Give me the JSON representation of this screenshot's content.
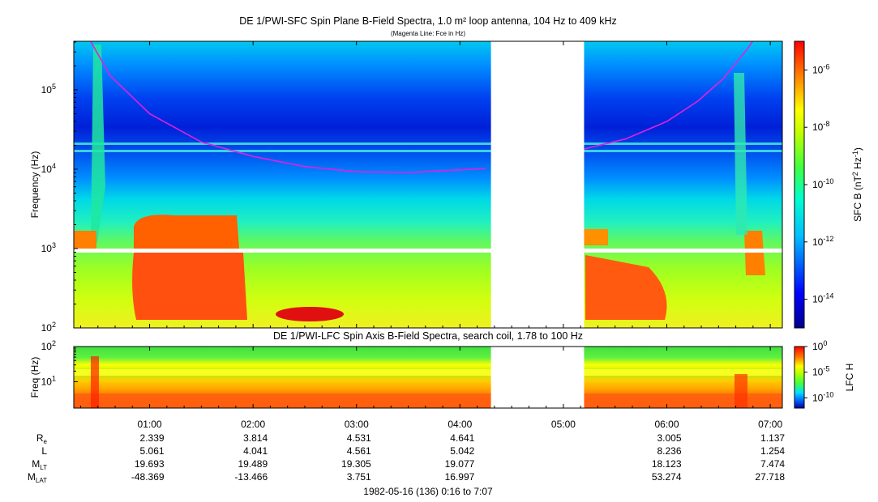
{
  "chart_data": [
    {
      "type": "heatmap",
      "title": "DE 1/PWI-SFC  Spin Plane B-Field Spectra, 1.0 m² loop antenna, 104 Hz to 409 kHz",
      "subtitle": "(Magenta Line: Fce in Hz)",
      "ylabel": "Frequency (Hz)",
      "y_scale": "log",
      "ylim": [
        100,
        409000
      ],
      "y_ticks": [
        {
          "value": 100,
          "base": "10",
          "exp": "2"
        },
        {
          "value": 1000,
          "base": "10",
          "exp": "3"
        },
        {
          "value": 10000,
          "base": "10",
          "exp": "4"
        },
        {
          "value": 100000,
          "base": "10",
          "exp": "5"
        }
      ],
      "colorbar": {
        "label_main": "SFC B (nT",
        "label_exp1": "2",
        "label_mid": " Hz",
        "label_exp2": "-1",
        "label_end": ")",
        "scale": "log",
        "range": [
          1e-15,
          1e-05
        ],
        "ticks": [
          {
            "value": 1e-06,
            "base": "10",
            "exp": "-6"
          },
          {
            "value": 1e-08,
            "base": "10",
            "exp": "-8"
          },
          {
            "value": 1e-10,
            "base": "10",
            "exp": "-10"
          },
          {
            "value": 1e-12,
            "base": "10",
            "exp": "-12"
          },
          {
            "value": 1e-14,
            "base": "10",
            "exp": "-14"
          }
        ]
      },
      "data_gap": [
        "04:18",
        "05:12"
      ],
      "fce_line": {
        "color": "#e020e0",
        "points": [
          [
            0.43,
            409000
          ],
          [
            0.62,
            150000
          ],
          [
            1.0,
            50000
          ],
          [
            1.5,
            22000
          ],
          [
            2.0,
            14500
          ],
          [
            2.5,
            10800
          ],
          [
            3.0,
            9300
          ],
          [
            3.5,
            9100
          ],
          [
            4.0,
            9800
          ],
          [
            4.25,
            10200
          ],
          [
            5.2,
            18000
          ],
          [
            5.6,
            24000
          ],
          [
            6.0,
            40000
          ],
          [
            6.3,
            72000
          ],
          [
            6.55,
            140000
          ],
          [
            6.78,
            330000
          ],
          [
            6.83,
            409000
          ]
        ]
      }
    },
    {
      "type": "heatmap",
      "title": "DE 1/PWI-LFC  Spin Axis B-Field Spectra, search coil, 1.78 to 100 Hz",
      "ylabel": "Freq (Hz)",
      "y_scale": "log",
      "ylim": [
        1.78,
        100
      ],
      "y_ticks": [
        {
          "value": 10,
          "base": "10",
          "exp": "1"
        },
        {
          "value": 100,
          "base": "10",
          "exp": "2"
        }
      ],
      "colorbar": {
        "label": "LFC H",
        "scale": "log",
        "range": [
          1e-12,
          1
        ],
        "ticks": [
          {
            "value": 1,
            "base": "10",
            "exp": "0"
          },
          {
            "value": 1e-05,
            "base": "10",
            "exp": "-5"
          },
          {
            "value": 1e-10,
            "base": "10",
            "exp": "-10"
          }
        ]
      },
      "data_gap": [
        "04:18",
        "05:12"
      ]
    }
  ],
  "time_axis": {
    "start_hours": 0.2667,
    "end_hours": 7.1167,
    "ticks": [
      "01:00",
      "02:00",
      "03:00",
      "04:00",
      "05:00",
      "06:00",
      "07:00"
    ]
  },
  "ephemeris": {
    "rows": [
      {
        "label": "R",
        "sub": "e",
        "values": [
          "2.339",
          "3.814",
          "4.531",
          "4.641",
          "",
          "3.005",
          "1.137"
        ]
      },
      {
        "label": "L",
        "sub": "",
        "values": [
          "5.061",
          "4.041",
          "4.561",
          "5.042",
          "",
          "8.236",
          "1.254"
        ]
      },
      {
        "label": "M",
        "sub": "LT",
        "values": [
          "19.693",
          "19.489",
          "19.305",
          "19.077",
          "",
          "18.123",
          "7.474"
        ]
      },
      {
        "label": "M",
        "sub": "LAT",
        "values": [
          "-48.369",
          "-13.466",
          "3.751",
          "16.997",
          "",
          "53.274",
          "27.718"
        ]
      }
    ]
  },
  "footer": "1982-05-16 (136) 0:16 to 7:07"
}
